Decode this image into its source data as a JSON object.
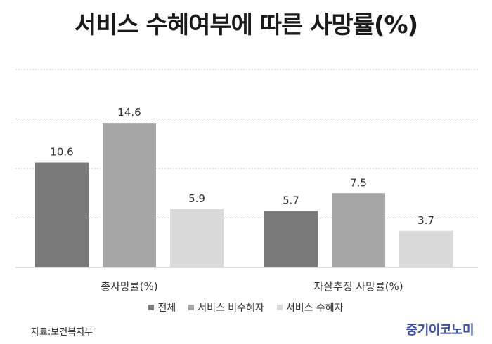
{
  "chart_data": {
    "type": "bar",
    "title": "서비스 수혜여부에 따른 사망률(%)",
    "categories": [
      "총사망률(%)",
      "자살추정 사망률(%)"
    ],
    "series": [
      {
        "name": "전체",
        "values": [
          10.6,
          5.7
        ],
        "color": "#7a7a7a"
      },
      {
        "name": "서비스 비수혜자",
        "values": [
          14.6,
          7.5
        ],
        "color": "#a6a6a6"
      },
      {
        "name": "서비스 수혜자",
        "values": [
          5.9,
          3.7
        ],
        "color": "#d9d9d9"
      }
    ],
    "ylim": [
      0,
      20
    ],
    "grid": true,
    "legend_position": "bottom"
  },
  "footer": {
    "source": "자료:보건복지부",
    "logo": "중기이코노미"
  }
}
